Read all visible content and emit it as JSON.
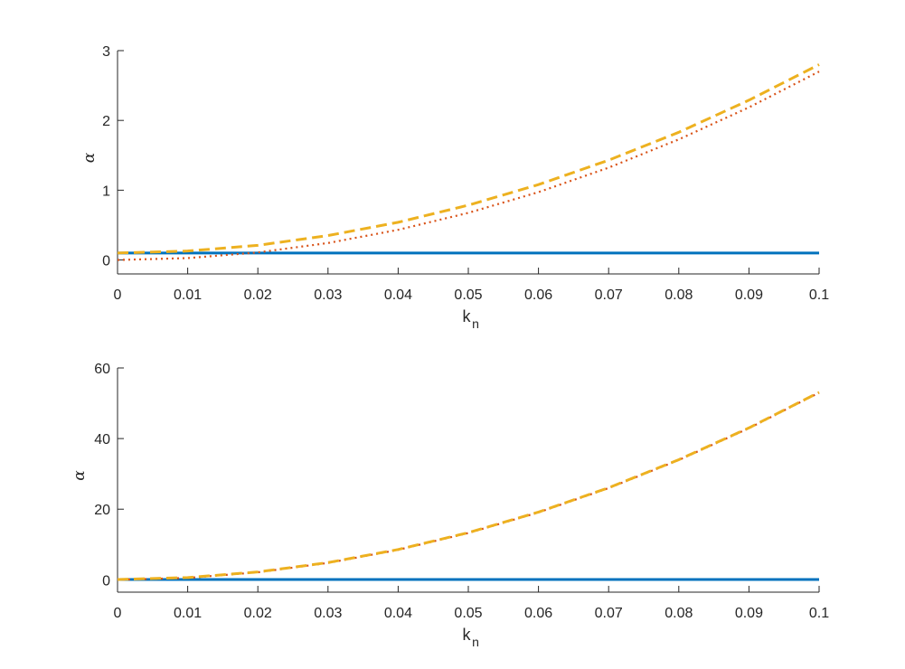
{
  "chart_data": [
    {
      "type": "line",
      "xlabel": "k",
      "xlabel_subscript": "n",
      "ylabel": "α",
      "xlim": [
        0,
        0.1
      ],
      "ylim": [
        -0.2,
        3
      ],
      "xticks": [
        0,
        0.01,
        0.02,
        0.03,
        0.04,
        0.05,
        0.06,
        0.07,
        0.08,
        0.09,
        0.1
      ],
      "xtick_labels": [
        "0",
        "0.01",
        "0.02",
        "0.03",
        "0.04",
        "0.05",
        "0.06",
        "0.07",
        "0.08",
        "0.09",
        "0.1"
      ],
      "yticks": [
        0,
        1,
        2,
        3
      ],
      "ytick_labels": [
        "0",
        "1",
        "2",
        "3"
      ],
      "grid": false,
      "x": [
        0,
        0.01,
        0.02,
        0.03,
        0.04,
        0.05,
        0.06,
        0.07,
        0.08,
        0.09,
        0.1
      ],
      "series": [
        {
          "color": "#0072BD",
          "line_style": "solid",
          "values": [
            0.1,
            0.1,
            0.1,
            0.1,
            0.1,
            0.1,
            0.1,
            0.1,
            0.1,
            0.1,
            0.1
          ]
        },
        {
          "color": "#D95319",
          "line_style": "dotted",
          "values": [
            0.0,
            0.027,
            0.108,
            0.243,
            0.432,
            0.675,
            0.972,
            1.323,
            1.728,
            2.187,
            2.7
          ]
        },
        {
          "color": "#EDB120",
          "line_style": "dashed",
          "values": [
            0.1,
            0.128,
            0.21,
            0.35,
            0.54,
            0.785,
            1.08,
            1.43,
            1.83,
            2.29,
            2.8
          ]
        }
      ]
    },
    {
      "type": "line",
      "xlabel": "k",
      "xlabel_subscript": "n",
      "ylabel": "α",
      "xlim": [
        0,
        0.1
      ],
      "ylim": [
        -3.5,
        60
      ],
      "xticks": [
        0,
        0.01,
        0.02,
        0.03,
        0.04,
        0.05,
        0.06,
        0.07,
        0.08,
        0.09,
        0.1
      ],
      "xtick_labels": [
        "0",
        "0.01",
        "0.02",
        "0.03",
        "0.04",
        "0.05",
        "0.06",
        "0.07",
        "0.08",
        "0.09",
        "0.1"
      ],
      "yticks": [
        0,
        20,
        40,
        60
      ],
      "ytick_labels": [
        "0",
        "20",
        "40",
        "60"
      ],
      "grid": false,
      "x": [
        0,
        0.01,
        0.02,
        0.03,
        0.04,
        0.05,
        0.06,
        0.07,
        0.08,
        0.09,
        0.1
      ],
      "series": [
        {
          "color": "#0072BD",
          "line_style": "solid",
          "values": [
            0.1,
            0.1,
            0.1,
            0.1,
            0.1,
            0.1,
            0.1,
            0.1,
            0.1,
            0.1,
            0.1
          ]
        },
        {
          "color": "#D95319",
          "line_style": "dotted",
          "values": [
            0.0,
            0.53,
            2.12,
            4.77,
            8.48,
            13.25,
            19.08,
            25.97,
            33.92,
            42.93,
            53.0
          ]
        },
        {
          "color": "#EDB120",
          "line_style": "dashed",
          "values": [
            0.1,
            0.63,
            2.22,
            4.87,
            8.58,
            13.35,
            19.18,
            26.07,
            34.02,
            43.03,
            53.1
          ]
        }
      ]
    }
  ]
}
